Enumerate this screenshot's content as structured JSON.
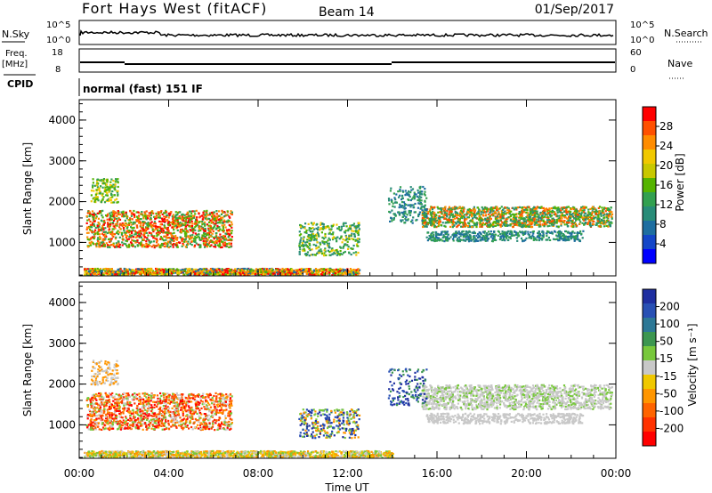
{
  "header": {
    "radar": "Fort Hays West (fitACF)",
    "beam": "Beam 14",
    "date": "01/Sep/2017"
  },
  "top_panels": {
    "nsky_label": "N.Sky",
    "nsearch_label": "N.Search",
    "noise_ticks": [
      "10^5",
      "10^0"
    ],
    "freq_label": "Freq.",
    "freq_unit": "[MHz]",
    "freq_ticks": [
      "18",
      "8"
    ],
    "nave_label": "Nave",
    "nave_ticks": [
      "60",
      "0"
    ],
    "cpid_label": "CPID",
    "cpid_value": "normal (fast) 151 IF"
  },
  "chart_data": [
    {
      "type": "heatmap",
      "name": "power",
      "ylabel": "Slant Range [km]",
      "xlabel": "Time UT",
      "xlim": [
        0,
        24
      ],
      "ylim": [
        180,
        4500
      ],
      "y_ticks": [
        1000,
        2000,
        3000,
        4000
      ],
      "x_tick_labels": [
        "00:00",
        "04:00",
        "08:00",
        "12:00",
        "16:00",
        "20:00",
        "00:00"
      ],
      "colorbar": {
        "label": "Power [dB]",
        "ticks": [
          "28",
          "24",
          "20",
          "16",
          "12",
          "8",
          "4"
        ],
        "colors": [
          "#ff0000",
          "#ff5000",
          "#ff8c00",
          "#f0c800",
          "#c8c800",
          "#55b400",
          "#32a050",
          "#288c78",
          "#1e6ea0",
          "#1446c8",
          "#0000ff"
        ]
      }
    },
    {
      "type": "heatmap",
      "name": "velocity",
      "ylabel": "Slant Range [km]",
      "xlabel": "Time UT",
      "xlim": [
        0,
        24
      ],
      "ylim": [
        180,
        4500
      ],
      "y_ticks": [
        1000,
        2000,
        3000,
        4000
      ],
      "x_tick_labels": [
        "00:00",
        "04:00",
        "08:00",
        "12:00",
        "16:00",
        "20:00",
        "00:00"
      ],
      "colorbar": {
        "label": "Velocity [m s⁻¹]",
        "ticks": [
          "200",
          "100",
          "50",
          "15",
          "-15",
          "-50",
          "-100",
          "-200"
        ],
        "colors": [
          "#1e2ea0",
          "#2850b4",
          "#2d7896",
          "#3c9650",
          "#78c83c",
          "#c8c8c8",
          "#f0c800",
          "#ff9600",
          "#ff6400",
          "#ff3200",
          "#ff0000"
        ]
      }
    }
  ],
  "x_axis_title": "Time UT"
}
